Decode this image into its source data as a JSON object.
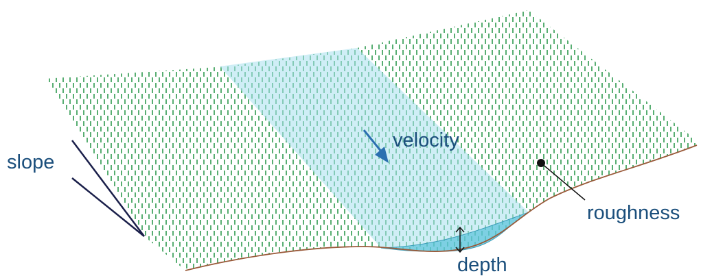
{
  "labels": {
    "slope": "slope",
    "velocity": "velocity",
    "roughness": "roughness",
    "depth": "depth"
  }
}
